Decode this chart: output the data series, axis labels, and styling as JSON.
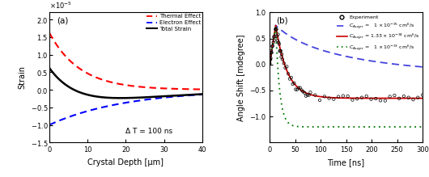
{
  "panel_a": {
    "label": "(a)",
    "xlabel": "Crystal Depth [μm]",
    "ylabel": "Strain",
    "xlim": [
      0,
      40
    ],
    "ylim": [
      -1.5e-05,
      2.2e-05
    ],
    "annotation": "Δ T = 100 ns",
    "thermal_color": "#ff0000",
    "electron_color": "#0000ff",
    "total_color": "#000000"
  },
  "panel_b": {
    "label": "(b)",
    "xlabel": "Time [ns]",
    "ylabel": "Angle Shift [mdegree]",
    "xlim": [
      0,
      300
    ],
    "ylim": [
      -1.5,
      1.0
    ],
    "blue_color": "#4444dd",
    "red_color": "#cc0000",
    "green_color": "#007700",
    "exp_color": "#000000"
  }
}
